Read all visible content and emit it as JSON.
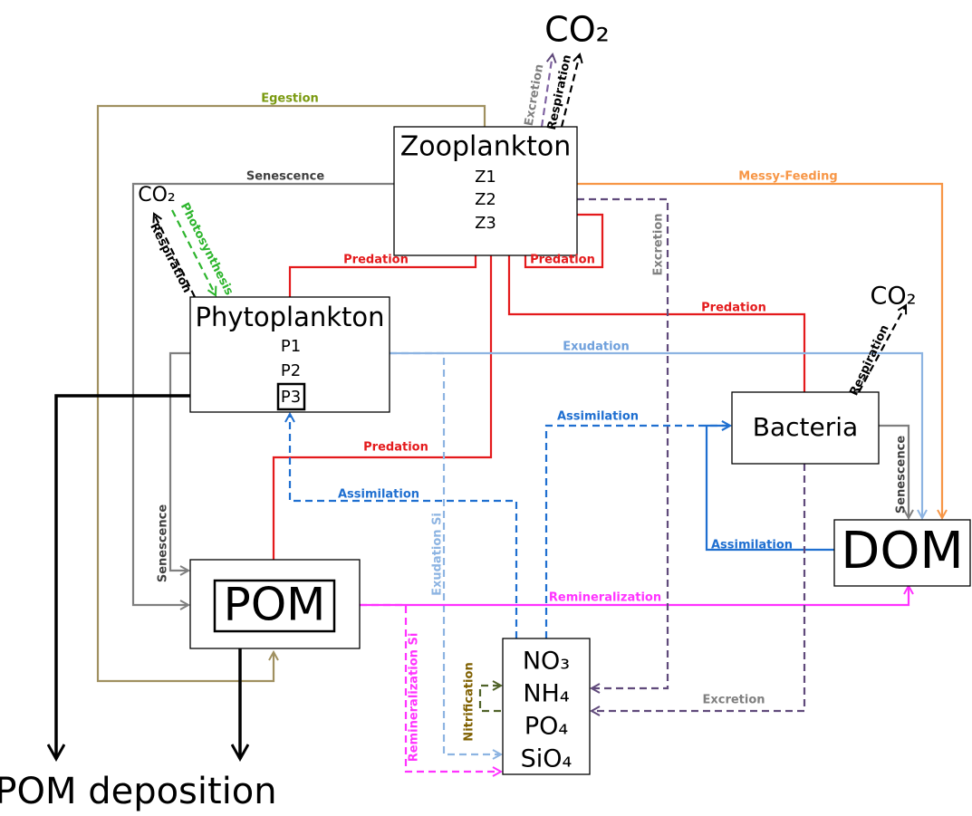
{
  "nodes": {
    "zooplankton": {
      "label": "Zooplankton",
      "items": [
        "Z1",
        "Z2",
        "Z3"
      ]
    },
    "phytoplankton": {
      "label": "Phytoplankton",
      "items": [
        "P1",
        "P2",
        "P3"
      ]
    },
    "bacteria": {
      "label": "Bacteria"
    },
    "dom": {
      "label": "DOM"
    },
    "pom": {
      "label": "POM"
    },
    "nutrients": {
      "items": [
        "NO₃",
        "NH₄",
        "PO₄",
        "SiO₄"
      ]
    }
  },
  "co2": [
    "CO₂",
    "CO₂",
    "CO₂"
  ],
  "deposition": "POM deposition",
  "edges": [
    {
      "label": "Egestion"
    },
    {
      "label": "Senescence"
    },
    {
      "label": "Messy-Feeding"
    },
    {
      "label": "Excretion"
    },
    {
      "label": "Respiration"
    },
    {
      "label": "Photosynthesis"
    },
    {
      "label": "Respiration"
    },
    {
      "label": "Predation"
    },
    {
      "label": "Predation"
    },
    {
      "label": "Predation"
    },
    {
      "label": "Predation"
    },
    {
      "label": "Excretion"
    },
    {
      "label": "Respiration"
    },
    {
      "label": "Exudation"
    },
    {
      "label": "Assimilation"
    },
    {
      "label": "Senescence"
    },
    {
      "label": "Assimilation"
    },
    {
      "label": "Exudation Si"
    },
    {
      "label": "Senescence"
    },
    {
      "label": "Assimilation"
    },
    {
      "label": "Remineralization"
    },
    {
      "label": "Remineralization Si"
    },
    {
      "label": "Nitrification"
    },
    {
      "label": "Excretion"
    }
  ]
}
